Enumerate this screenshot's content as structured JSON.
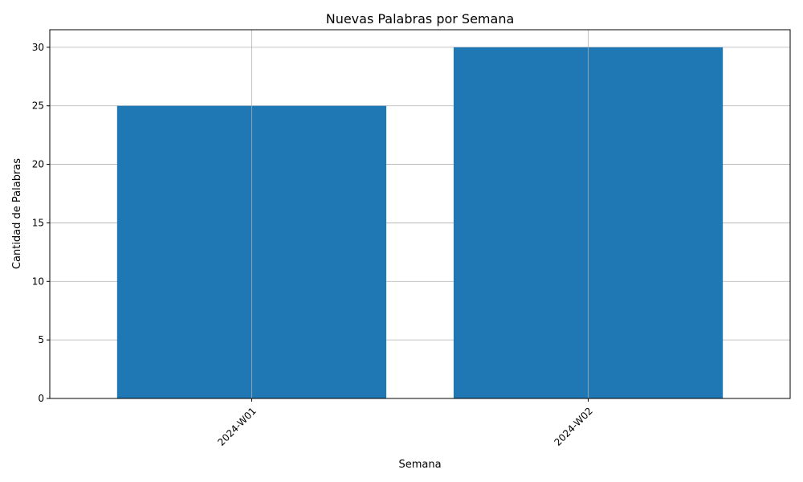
{
  "chart_data": {
    "type": "bar",
    "title": "Nuevas Palabras por Semana",
    "xlabel": "Semana",
    "ylabel": "Cantidad de Palabras",
    "categories": [
      "2024-W01",
      "2024-W02"
    ],
    "values": [
      25,
      30
    ],
    "ylim": [
      0,
      31.5
    ],
    "yticks": [
      0,
      5,
      10,
      15,
      20,
      25,
      30
    ],
    "grid": true,
    "xtick_rotation_deg": 45,
    "bar_color": "#1f77b4",
    "grid_color": "#b0b0b0"
  }
}
